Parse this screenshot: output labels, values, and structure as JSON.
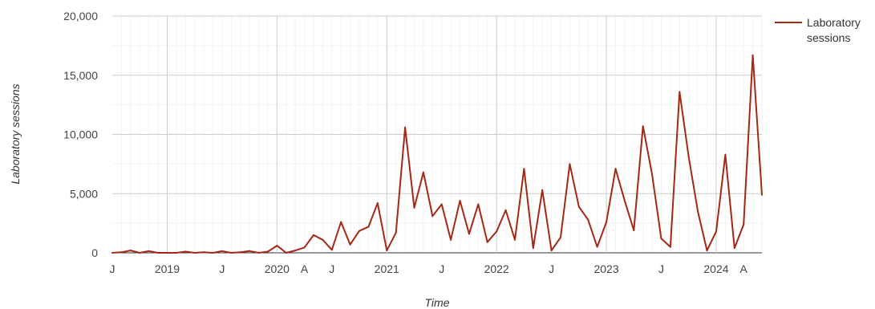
{
  "chart_data": {
    "type": "line",
    "title": "",
    "xlabel": "Time",
    "ylabel": "Laboratory sessions",
    "ylim": [
      0,
      20000
    ],
    "y_ticks": [
      0,
      5000,
      10000,
      15000,
      20000
    ],
    "y_tick_labels": [
      "0",
      "5,000",
      "10,000",
      "15,000",
      "20,000"
    ],
    "x_ticks": [
      {
        "label": "J",
        "date": "2018-07"
      },
      {
        "label": "2019",
        "date": "2019-01"
      },
      {
        "label": "J",
        "date": "2019-07"
      },
      {
        "label": "2020",
        "date": "2020-01"
      },
      {
        "label": "A",
        "date": "2020-04"
      },
      {
        "label": "J",
        "date": "2020-07"
      },
      {
        "label": "2021",
        "date": "2021-01"
      },
      {
        "label": "J",
        "date": "2021-07"
      },
      {
        "label": "2022",
        "date": "2022-01"
      },
      {
        "label": "J",
        "date": "2022-07"
      },
      {
        "label": "2023",
        "date": "2023-01"
      },
      {
        "label": "J",
        "date": "2023-07"
      },
      {
        "label": "2024",
        "date": "2024-01"
      },
      {
        "label": "A",
        "date": "2024-04"
      }
    ],
    "grid": true,
    "legend_position": "top-right",
    "series": [
      {
        "name": "Laboratory sessions",
        "color": "#a52714",
        "x": [
          "2018-07",
          "2018-08",
          "2018-09",
          "2018-10",
          "2018-11",
          "2018-12",
          "2019-01",
          "2019-02",
          "2019-03",
          "2019-04",
          "2019-05",
          "2019-06",
          "2019-07",
          "2019-08",
          "2019-09",
          "2019-10",
          "2019-11",
          "2019-12",
          "2020-01",
          "2020-02",
          "2020-03",
          "2020-04",
          "2020-05",
          "2020-06",
          "2020-07",
          "2020-08",
          "2020-09",
          "2020-10",
          "2020-11",
          "2020-12",
          "2021-01",
          "2021-02",
          "2021-03",
          "2021-04",
          "2021-05",
          "2021-06",
          "2021-07",
          "2021-08",
          "2021-09",
          "2021-10",
          "2021-11",
          "2021-12",
          "2022-01",
          "2022-02",
          "2022-03",
          "2022-04",
          "2022-05",
          "2022-06",
          "2022-07",
          "2022-08",
          "2022-09",
          "2022-10",
          "2022-11",
          "2022-12",
          "2023-01",
          "2023-02",
          "2023-03",
          "2023-04",
          "2023-05",
          "2023-06",
          "2023-07",
          "2023-08",
          "2023-09",
          "2023-10",
          "2023-11",
          "2023-12",
          "2024-01",
          "2024-02",
          "2024-03",
          "2024-04",
          "2024-05",
          "2024-06"
        ],
        "values": [
          0,
          50,
          200,
          0,
          150,
          0,
          0,
          0,
          100,
          0,
          50,
          0,
          150,
          0,
          50,
          150,
          0,
          100,
          600,
          0,
          200,
          450,
          1500,
          1100,
          250,
          2600,
          700,
          1850,
          2200,
          4200,
          200,
          1700,
          10600,
          3800,
          6800,
          3100,
          4100,
          1100,
          4400,
          1600,
          4100,
          900,
          1800,
          3600,
          1100,
          7100,
          400,
          5300,
          200,
          1300,
          7500,
          3900,
          2800,
          500,
          2600,
          7100,
          4400,
          1900,
          10700,
          6600,
          1200,
          500,
          13600,
          8100,
          3500,
          200,
          1800,
          8300,
          400,
          2400,
          16700,
          4900
        ]
      }
    ]
  }
}
